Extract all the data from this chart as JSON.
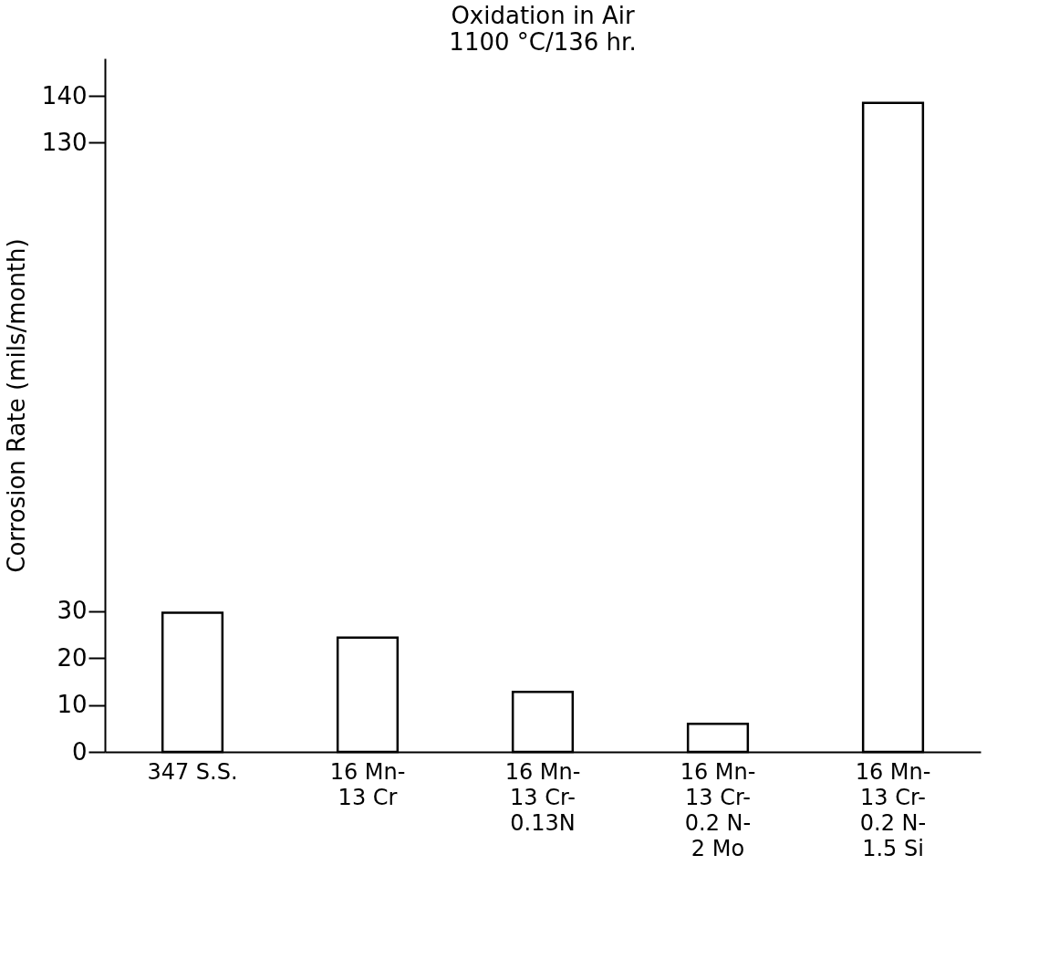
{
  "chart_data": {
    "type": "bar",
    "title": "Oxidation in Air",
    "subtitle": "1100 °C/136 hr.",
    "ylabel": "Corrosion Rate (mils/month)",
    "categories": [
      "347 S.S.",
      "16 Mn-13 Cr",
      "16 Mn-13 Cr-0.13N",
      "16 Mn-13 Cr-0.2 N-2 Mo",
      "16 Mn-13 Cr-0.2 N-1.5 Si"
    ],
    "values": [
      29.7,
      24.4,
      12.8,
      6.0,
      138.5
    ],
    "color": "#ffffff",
    "ylim": [
      0,
      148
    ],
    "yticks": [
      0,
      10,
      20,
      30,
      130,
      140
    ],
    "grid": false
  }
}
